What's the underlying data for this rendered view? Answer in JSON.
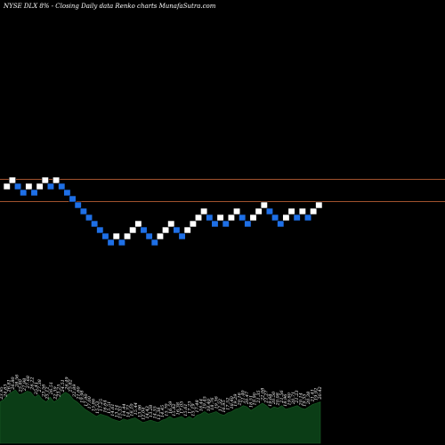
{
  "chart_data": {
    "type": "renko",
    "title": "NYSE DLX  8% -  Closing Daily data  Renko  charts MunafaSutra.com",
    "up_color": "#ffffff",
    "down_color": "#1e6fe6",
    "reference_line_color": "#a0522d",
    "reference_levels": [
      22.9,
      20.4
    ],
    "bricks": [
      {
        "dir": "up",
        "value": 22.1
      },
      {
        "dir": "up",
        "value": 22.8
      },
      {
        "dir": "down",
        "value": 22.1
      },
      {
        "dir": "down",
        "value": 21.4
      },
      {
        "dir": "up",
        "value": 22.1
      },
      {
        "dir": "down",
        "value": 21.4
      },
      {
        "dir": "up",
        "value": 22.1
      },
      {
        "dir": "up",
        "value": 22.8
      },
      {
        "dir": "down",
        "value": 22.1
      },
      {
        "dir": "up",
        "value": 22.8
      },
      {
        "dir": "down",
        "value": 22.1
      },
      {
        "dir": "down",
        "value": 21.4
      },
      {
        "dir": "down",
        "value": 20.7
      },
      {
        "dir": "down",
        "value": 20.0
      },
      {
        "dir": "down",
        "value": 19.3
      },
      {
        "dir": "down",
        "value": 18.6
      },
      {
        "dir": "down",
        "value": 17.9
      },
      {
        "dir": "down",
        "value": 17.2
      },
      {
        "dir": "down",
        "value": 16.5
      },
      {
        "dir": "down",
        "value": 15.8
      },
      {
        "dir": "up",
        "value": 16.5
      },
      {
        "dir": "down",
        "value": 15.8
      },
      {
        "dir": "up",
        "value": 16.5
      },
      {
        "dir": "up",
        "value": 17.2
      },
      {
        "dir": "up",
        "value": 17.9
      },
      {
        "dir": "down",
        "value": 17.2
      },
      {
        "dir": "down",
        "value": 16.5
      },
      {
        "dir": "down",
        "value": 15.8
      },
      {
        "dir": "up",
        "value": 16.5
      },
      {
        "dir": "up",
        "value": 17.2
      },
      {
        "dir": "up",
        "value": 17.9
      },
      {
        "dir": "down",
        "value": 17.2
      },
      {
        "dir": "down",
        "value": 16.5
      },
      {
        "dir": "up",
        "value": 17.2
      },
      {
        "dir": "up",
        "value": 17.9
      },
      {
        "dir": "up",
        "value": 18.6
      },
      {
        "dir": "up",
        "value": 19.3
      },
      {
        "dir": "down",
        "value": 18.6
      },
      {
        "dir": "down",
        "value": 17.9
      },
      {
        "dir": "up",
        "value": 18.6
      },
      {
        "dir": "down",
        "value": 17.9
      },
      {
        "dir": "up",
        "value": 18.6
      },
      {
        "dir": "up",
        "value": 19.3
      },
      {
        "dir": "down",
        "value": 18.6
      },
      {
        "dir": "down",
        "value": 17.9
      },
      {
        "dir": "up",
        "value": 18.6
      },
      {
        "dir": "up",
        "value": 19.3
      },
      {
        "dir": "up",
        "value": 20.0
      },
      {
        "dir": "down",
        "value": 19.3
      },
      {
        "dir": "down",
        "value": 18.6
      },
      {
        "dir": "down",
        "value": 17.9
      },
      {
        "dir": "up",
        "value": 18.6
      },
      {
        "dir": "up",
        "value": 19.3
      },
      {
        "dir": "down",
        "value": 18.6
      },
      {
        "dir": "up",
        "value": 19.3
      },
      {
        "dir": "down",
        "value": 18.6
      },
      {
        "dir": "up",
        "value": 19.3
      },
      {
        "dir": "up",
        "value": 20.0
      }
    ],
    "volume_labels": [
      "23.95",
      "24.83",
      "26.81",
      "26.80",
      "28.56",
      "25.80",
      "27.98",
      "27.68",
      "26.22",
      "25.41",
      "27.38",
      "23.56",
      "25.12",
      "26.51",
      "22.39",
      "23.25",
      "24.51",
      "26.49",
      "25.82",
      "22.89",
      "21.60",
      "19.98",
      "17.90",
      "17.00",
      "15.86",
      "15.53",
      "17.25",
      "16.64",
      "15.51",
      "14.61",
      "13.14",
      "15.33",
      "14.44",
      "14.72",
      "16.10",
      "15.44",
      "13.96",
      "12.04",
      "14.43",
      "13.28",
      "14.55",
      "13.38",
      "14.45",
      "15.70",
      "16.59",
      "15.82",
      "16.38",
      "17.05",
      "15.61",
      "17.23",
      "15.19",
      "17.48",
      "18.44",
      "19.45",
      "18.40",
      "18.76",
      "19.36",
      "17.32",
      "16.95",
      "17.52",
      "18.40",
      "19.29",
      "20.16",
      "21.40",
      "20.47",
      "18.51",
      "19.90",
      "21.35",
      "22.08",
      "21.27",
      "19.68",
      "20.50",
      "20.08",
      "21.56",
      "18.96",
      "19.80",
      "20.71",
      "21.23",
      "20.14",
      "19.55",
      "20.38",
      "21.41",
      "19.92",
      "20.42"
    ],
    "volume_values": [
      34,
      36,
      40,
      42,
      44,
      40,
      41,
      43,
      42,
      38,
      40,
      36,
      34,
      38,
      34,
      36,
      40,
      42,
      40,
      36,
      34,
      31,
      28,
      26,
      24,
      22,
      24,
      23,
      22,
      20,
      19,
      18,
      20,
      19,
      20,
      21,
      19,
      17,
      18,
      19,
      18,
      17,
      19,
      20,
      22,
      20,
      21,
      22,
      20,
      22,
      20,
      23,
      24,
      26,
      24,
      25,
      26,
      24,
      23,
      25,
      26,
      28,
      29,
      31,
      30,
      27,
      29,
      31,
      33,
      31,
      28,
      30,
      29,
      31,
      28,
      29,
      30,
      31,
      29,
      28,
      30,
      32,
      33,
      34
    ]
  }
}
